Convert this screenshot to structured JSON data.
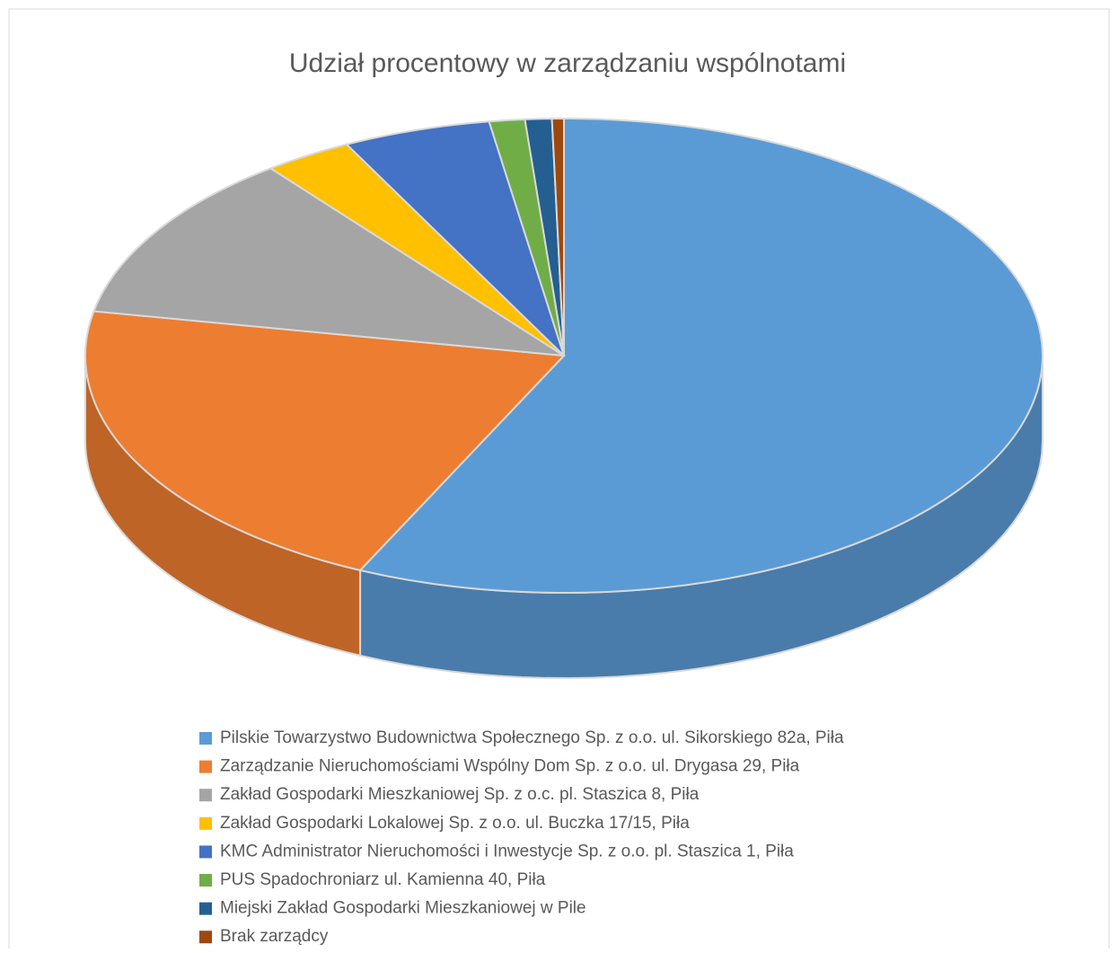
{
  "chart_data": {
    "type": "pie",
    "title": "Udział procentowy w zarządzaniu wspólnotami",
    "categories": [
      "Pilskie Towarzystwo Budownictwa Społecznego Sp. z o.o. ul. Sikorskiego 82a, Piła",
      "Zarządzanie Nieruchomościami Wspólny Dom Sp. z o.o. ul. Drygasa 29, Piła",
      "Zakład Gospodarki Mieszkaniowej Sp. z o.c. pl. Staszica 8, Piła",
      "Zakład Gospodarki Lokalowej Sp. z o.o. ul. Buczka 17/15, Piła",
      "KMC Administrator Nieruchomości i Inwestycje Sp. z o.o. pl. Staszica 1, Piła",
      "PUS Spadochroniarz ul. Kamienna 40, Piła",
      "Miejski Zakład Gospodarki Mieszkaniowej w Pile",
      "Brak zarządcy"
    ],
    "values": [
      57,
      21,
      11.5,
      3,
      5,
      1.2,
      0.9,
      0.4
    ],
    "colors": [
      "#5b9bd5",
      "#ed7d31",
      "#a5a5a5",
      "#ffc000",
      "#4472c4",
      "#70ad47",
      "#255e91",
      "#9e480e"
    ]
  }
}
